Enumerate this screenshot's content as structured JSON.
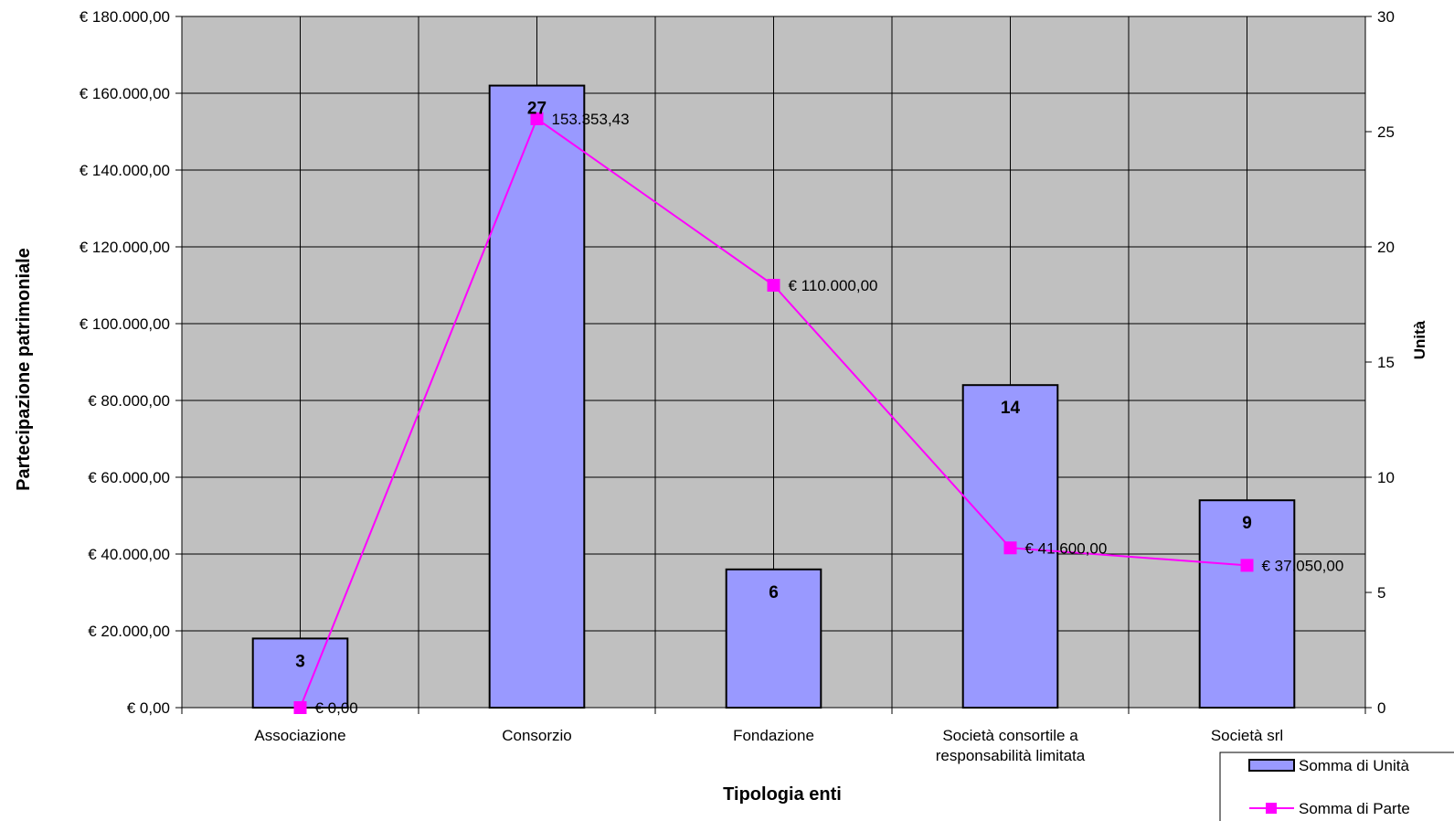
{
  "chart_data": {
    "type": "bar",
    "categories": [
      "Associazione",
      "Consorzio",
      "Fondazione",
      "Società consortile a|responsabilità limitata",
      "Società srl"
    ],
    "series": [
      {
        "name": "Somma di Unità",
        "kind": "bar",
        "axis": "right",
        "color": "#9999ff",
        "values": [
          3,
          27,
          6,
          14,
          9
        ],
        "labels": [
          "3",
          "27",
          "6",
          "14",
          "9"
        ]
      },
      {
        "name": "Somma di Parte",
        "kind": "line",
        "axis": "left",
        "color": "#ff00ff",
        "values": [
          0,
          153353.43,
          110000,
          41600,
          37050
        ],
        "labels": [
          "€ 0,00",
          "153.353,43",
          "€ 110.000,00",
          "€ 41.600,00",
          "€ 37.050,00"
        ]
      }
    ],
    "xlabel": "Tipologia enti",
    "ylabel": "Partecipazione patrimoniale",
    "y2label": "Unità",
    "ylim": [
      0,
      180000
    ],
    "y2lim": [
      0,
      30
    ],
    "yticks": [
      "€ 0,00",
      "€ 20.000,00",
      "€ 40.000,00",
      "€ 60.000,00",
      "€ 80.000,00",
      "€ 100.000,00",
      "€ 120.000,00",
      "€ 140.000,00",
      "€ 160.000,00",
      "€ 180.000,00"
    ],
    "y2ticks": [
      "0",
      "5",
      "10",
      "15",
      "20",
      "25",
      "30"
    ],
    "grid": true,
    "plot_background": "#c0c0c0",
    "legend_position": "bottom-right"
  }
}
